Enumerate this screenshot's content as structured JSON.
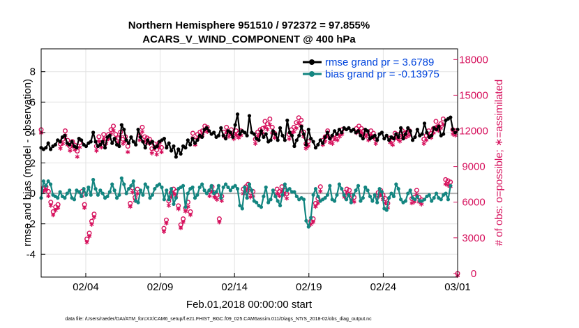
{
  "colors": {
    "rmse": "#000000",
    "bias": "#138580",
    "obs": "#d6105c",
    "legend_text": "#0044dd",
    "grid": "#e3e3e3",
    "zero_line": "#b0b0b0"
  },
  "chart_data": {
    "type": "line",
    "title_line1": "Northern Hemisphere 951510 / 972372 = 97.855%",
    "title_line2": "ACARS_V_WIND_COMPONENT @ 400 hPa",
    "xlabel": "Feb.01,2018 00:00:00 start",
    "ylabel_left": "rmse and bias (model - observation)",
    "ylabel_right": "# of obs: o=possible; ∗=assimilated",
    "footer": "data file: /Users/raeder/DAI/ATM_forcXX/CAM6_setup/f.e21.FHIST_BGC.f09_025.CAM6assim.011/Diags_NTrS_2018-02/obs_diag_output.nc",
    "xlim": [
      1,
      29
    ],
    "ylim_left": [
      -5.5,
      9.5
    ],
    "ylim_right": [
      -300,
      18900
    ],
    "x_ticks": [
      {
        "pos": 4,
        "label": "02/04"
      },
      {
        "pos": 9,
        "label": "02/09"
      },
      {
        "pos": 14,
        "label": "02/14"
      },
      {
        "pos": 19,
        "label": "02/19"
      },
      {
        "pos": 24,
        "label": "02/24"
      },
      {
        "pos": 29,
        "label": "03/01"
      }
    ],
    "y_ticks_left": [
      "-4",
      "-2",
      "0",
      "2",
      "4",
      "6",
      "8"
    ],
    "y_ticks_right": [
      "0",
      "3000",
      "6000",
      "9000",
      "12000",
      "15000",
      "18000"
    ],
    "legend": [
      {
        "name": "rmse",
        "label": "rmse grand pr = 3.6789"
      },
      {
        "name": "bias",
        "label": "bias grand pr = -0.13975"
      }
    ],
    "series": [
      {
        "name": "rmse",
        "axis": "left",
        "values": [
          3.0,
          2.9,
          3.0,
          3.3,
          2.9,
          3.1,
          3.2,
          3.5,
          3.4,
          3.7,
          3.8,
          3.3,
          3.2,
          3.4,
          3.1,
          3.0,
          3.6,
          3.5,
          3.2,
          3.1,
          3.3,
          3.4,
          4.0,
          3.4,
          3.1,
          3.2,
          3.4,
          3.0,
          3.7,
          3.8,
          3.3,
          3.6,
          3.2,
          3.1,
          4.5,
          4.2,
          3.5,
          3.3,
          3.7,
          3.4,
          3.2,
          4.2,
          3.7,
          3.4,
          3.0,
          3.5,
          3.3,
          3.4,
          3.0,
          3.1,
          3.4,
          3.5,
          3.6,
          3.0,
          3.3,
          2.8,
          3.1,
          2.4,
          2.9,
          2.6,
          3.1,
          3.0,
          3.5,
          3.2,
          3.6,
          3.3,
          3.5,
          3.8,
          3.7,
          4.2,
          4.3,
          4.1,
          3.9,
          4.0,
          3.7,
          3.8,
          4.3,
          3.8,
          3.6,
          4.1,
          4.0,
          3.7,
          4.5,
          5.2,
          3.9,
          4.1,
          4.0,
          3.8,
          5.1,
          4.0,
          3.9,
          3.6,
          3.5,
          4.1,
          3.7,
          3.9,
          3.4,
          3.5,
          4.1,
          3.9,
          3.5,
          4.3,
          3.8,
          3.5,
          4.8,
          4.0,
          3.8,
          3.1,
          3.5,
          3.8,
          4.4,
          3.9,
          3.2,
          4.2,
          3.6,
          3.4,
          3.0,
          3.2,
          3.5,
          3.3,
          3.7,
          4.0,
          3.6,
          3.8,
          4.1,
          3.9,
          4.2,
          4.0,
          4.3,
          4.2,
          4.3,
          4.1,
          4.2,
          4.0,
          4.1,
          3.8,
          3.6,
          4.2,
          4.1,
          3.6,
          3.7,
          3.8,
          3.5,
          3.9,
          4.0,
          3.6,
          3.8,
          3.5,
          3.7,
          3.6,
          3.9,
          3.7,
          4.3,
          3.6,
          3.9,
          4.3,
          4.1,
          3.5,
          3.7,
          4.2,
          3.8,
          3.9,
          4.6,
          4.0,
          3.7,
          3.8,
          4.3,
          4.2,
          4.4,
          3.8,
          3.9,
          4.8,
          4.9,
          5.0,
          4.2,
          4.0,
          4.2
        ]
      },
      {
        "name": "bias",
        "axis": "left",
        "values": [
          -0.3,
          0.8,
          0.5,
          0.8,
          0.6,
          -0.1,
          -0.2,
          -0.3,
          0.1,
          -0.2,
          -0.3,
          0.0,
          0.2,
          -0.3,
          -0.4,
          0.2,
          0.1,
          -0.2,
          0.3,
          -0.1,
          0.4,
          -0.1,
          0.9,
          0.3,
          -0.1,
          0.2,
          0.0,
          -0.3,
          -0.2,
          0.1,
          0.6,
          0.2,
          -0.3,
          -0.1,
          1.0,
          0.6,
          0.0,
          0.3,
          0.5,
          0.8,
          -0.5,
          -0.6,
          0.2,
          -0.1,
          0.6,
          0.4,
          -0.3,
          -0.1,
          0.3,
          0.5,
          0.6,
          0.4,
          -0.4,
          0.2,
          -0.4,
          0.3,
          -0.7,
          -0.3,
          0.3,
          0.4,
          0.5,
          -0.9,
          0.0,
          0.3,
          0.4,
          -0.3,
          -0.1,
          0.4,
          0.6,
          0.2,
          0.0,
          0.2,
          0.5,
          0.0,
          0.1,
          0.5,
          -0.3,
          0.4,
          0.6,
          0.4,
          0.2,
          0.4,
          0.5,
          0.3,
          -0.8,
          -1.0,
          0.4,
          -0.3,
          0.6,
          0.2,
          -0.5,
          -0.6,
          -0.8,
          -0.9,
          -0.2,
          0.4,
          -0.6,
          -0.4,
          0.2,
          -0.2,
          -0.5,
          -0.8,
          -0.1,
          0.6,
          0.2,
          0.3,
          0.1,
          0.1,
          -0.2,
          -0.4,
          -0.3,
          -0.4,
          -1.8,
          -2.2,
          -1.6,
          -0.1,
          0.3,
          -0.2,
          -0.5,
          -0.4,
          -0.3,
          -0.1,
          0.5,
          -0.4,
          -0.5,
          -0.1,
          0.6,
          0.3,
          -0.1,
          -0.4,
          -0.1,
          -0.6,
          -0.1,
          0.2,
          0.5,
          -0.5,
          -0.3,
          0.4,
          0.2,
          -0.2,
          -0.5,
          -0.1,
          -0.6,
          0.3,
          0.1,
          -1.0,
          -1.1,
          -0.3,
          0.0,
          -0.2,
          0.6,
          0.3,
          -0.4,
          -0.6,
          -0.5,
          0.0,
          0.2,
          -0.3,
          -0.4,
          -0.2,
          -0.5,
          -0.5,
          -0.4,
          -0.2,
          -0.1,
          -0.5,
          -0.3,
          0.0,
          -0.3,
          -0.4,
          -0.1,
          0.0,
          -0.4,
          0.5
        ]
      },
      {
        "name": "obs_possible",
        "axis": "right",
        "marker": "o",
        "values": [
          12100,
          7200,
          7300,
          6900,
          6000,
          5200,
          5600,
          5800,
          10900,
          11300,
          12000,
          11200,
          10700,
          11100,
          10800,
          10300,
          11000,
          6900,
          5800,
          2900,
          3400,
          4400,
          5000,
          10700,
          11500,
          11000,
          11700,
          11300,
          11700,
          12100,
          12400,
          11700,
          11400,
          11900,
          11300,
          11500,
          10700,
          5900,
          7200,
          6400,
          7100,
          11600,
          12300,
          11500,
          11400,
          11300,
          10500,
          10900,
          10400,
          11000,
          10600,
          3800,
          4500,
          6100,
          6800,
          7100,
          6900,
          5700,
          4100,
          4600,
          5500,
          6000,
          5200,
          11800,
          11200,
          11700,
          11900,
          12000,
          12400,
          12300,
          6900,
          7300,
          6800,
          6600,
          4600,
          6500,
          11900,
          12300,
          11900,
          12100,
          11700,
          12000,
          11800,
          12000,
          7100,
          7300,
          7500,
          6800,
          6900,
          11300,
          11900,
          12100,
          12200,
          12800,
          12600,
          13000,
          12300,
          11800,
          7100,
          6900,
          7300,
          7000,
          6700,
          11700,
          12100,
          12300,
          12700,
          13100,
          12900,
          11900,
          10900,
          11100,
          4400,
          4600,
          5900,
          6300,
          7300,
          11200,
          11500,
          12000,
          11400,
          11300,
          11700,
          11600,
          11900,
          12100,
          6800,
          7100,
          7000,
          6600,
          6400,
          12200,
          12400,
          12200,
          12000,
          11900,
          11600,
          12000,
          11800,
          11300,
          6800,
          7000,
          6600,
          6300,
          5900,
          11400,
          11200,
          11800,
          11700,
          11500,
          12000,
          11800,
          11900,
          12000,
          6300,
          6400,
          7000,
          6400,
          6200,
          11300,
          11600,
          12000,
          11800,
          12200,
          12800,
          12400,
          12600,
          13000,
          7900,
          7800,
          7700,
          12100,
          12000,
          0
        ]
      },
      {
        "name": "obs_assimilated",
        "axis": "right",
        "marker": "*",
        "values": [
          12000,
          7100,
          7200,
          6700,
          5900,
          5100,
          5500,
          5700,
          10700,
          11100,
          11800,
          11000,
          10500,
          10900,
          10600,
          10000,
          10800,
          6700,
          5700,
          2800,
          3300,
          4300,
          4900,
          10500,
          11300,
          10800,
          11500,
          11100,
          11500,
          11900,
          12200,
          11500,
          11200,
          11700,
          11100,
          11300,
          10400,
          5800,
          7000,
          6300,
          6900,
          11400,
          12100,
          11300,
          11200,
          11100,
          10300,
          10700,
          10200,
          10800,
          10400,
          3700,
          4400,
          5900,
          6600,
          6900,
          6700,
          5600,
          4000,
          4500,
          5400,
          5800,
          5100,
          11600,
          11000,
          11500,
          11700,
          11800,
          12200,
          12100,
          6700,
          7100,
          6600,
          6400,
          4500,
          6300,
          11700,
          12100,
          11700,
          11900,
          11500,
          11800,
          11600,
          11800,
          6900,
          7100,
          7300,
          6600,
          6700,
          11100,
          11700,
          11900,
          12000,
          12500,
          12300,
          12700,
          12000,
          11600,
          6900,
          6700,
          7100,
          6800,
          6500,
          11500,
          11900,
          12100,
          12400,
          12800,
          12600,
          11700,
          10700,
          10900,
          4300,
          4500,
          5800,
          6100,
          7100,
          11000,
          11300,
          11800,
          11200,
          11100,
          11500,
          11400,
          11700,
          11900,
          6600,
          6900,
          6800,
          6400,
          6200,
          12000,
          12200,
          12000,
          11800,
          11700,
          11400,
          11800,
          11600,
          11100,
          6600,
          6800,
          6400,
          6100,
          5700,
          11200,
          11000,
          11600,
          11500,
          11300,
          11800,
          11600,
          11700,
          11800,
          6100,
          6200,
          6800,
          6200,
          6000,
          11100,
          11400,
          11800,
          11600,
          12000,
          12500,
          12200,
          12400,
          12700,
          7700,
          7600,
          7500,
          11900,
          11800,
          0
        ]
      }
    ]
  }
}
